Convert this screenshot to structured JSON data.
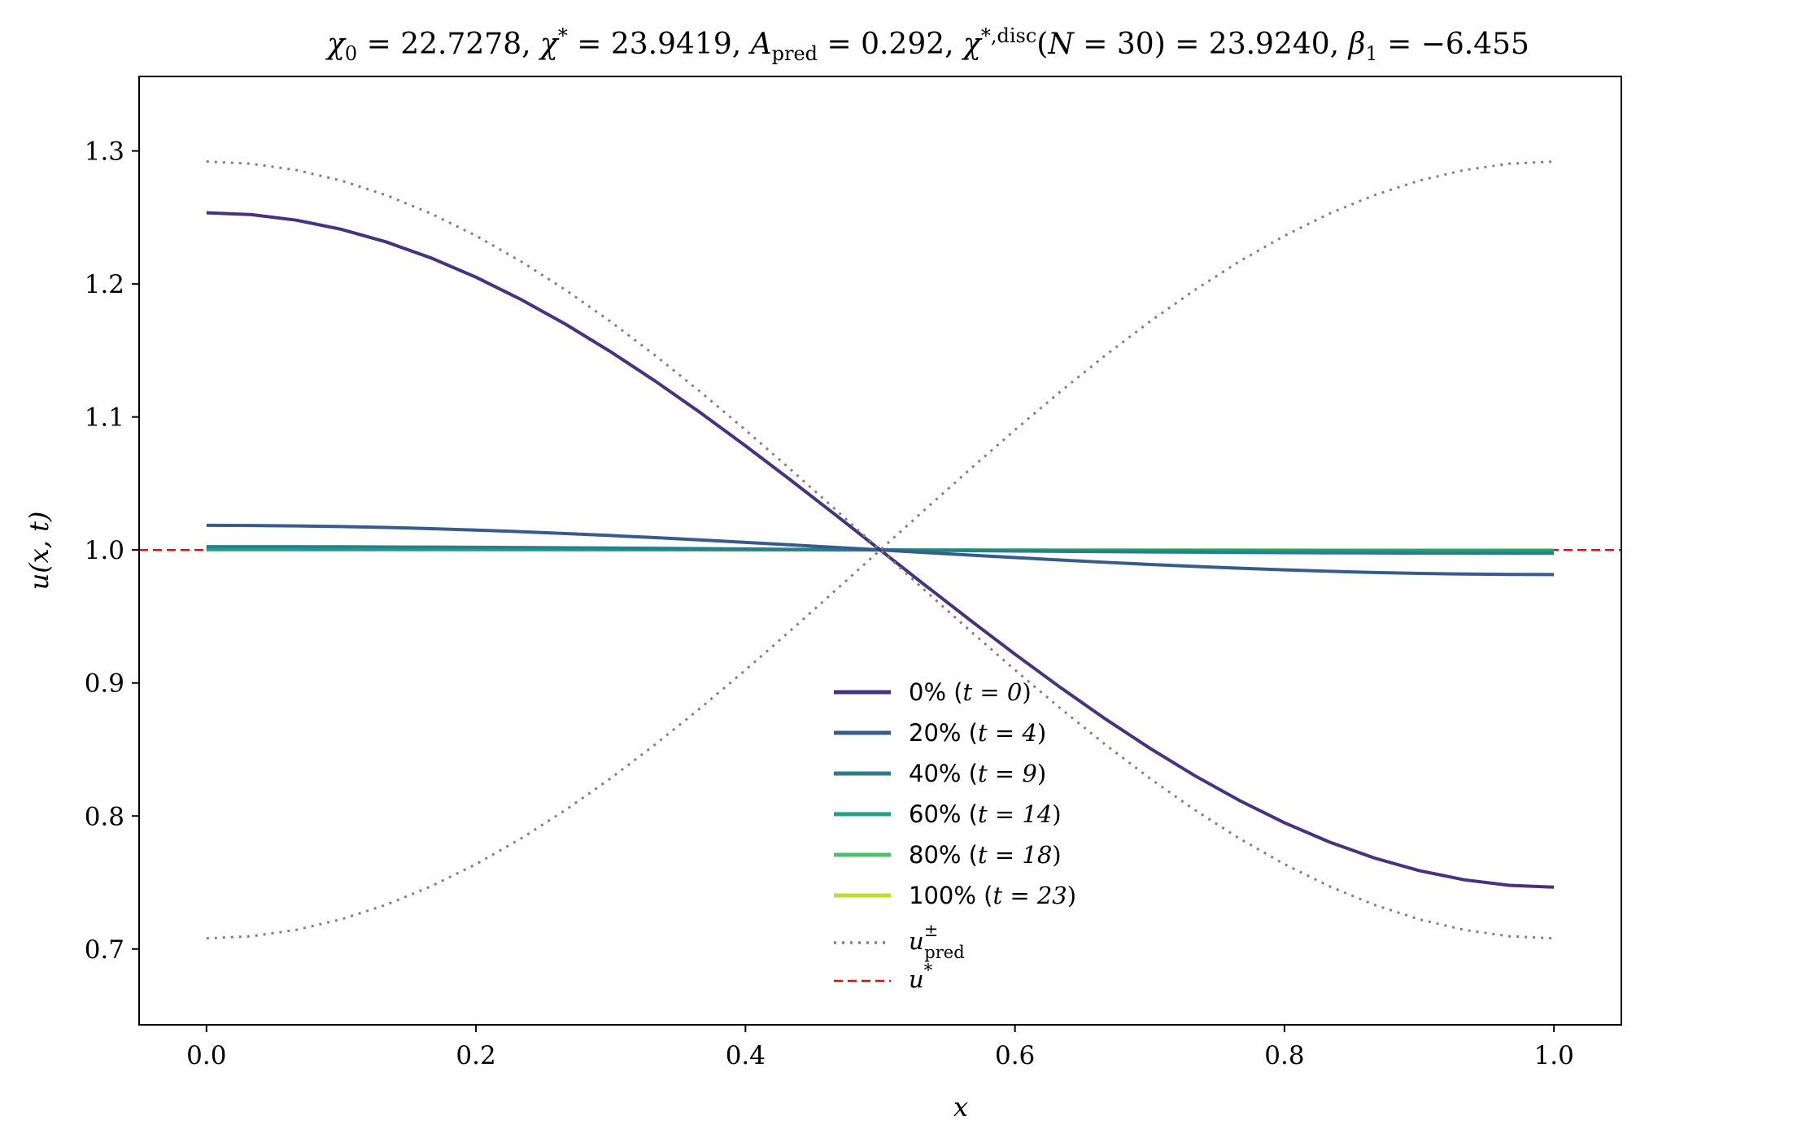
{
  "chart_data": {
    "type": "line",
    "title": "χ₀ = 22.7278,  χ* = 23.9419,  A_pred = 0.292,  χ*,disc(N = 30) = 23.9240,  β₁ = −6.455",
    "title_parts": {
      "chi0": "χ₀ = 22.7278,",
      "chistar": "χ* = 23.9419,",
      "apred": "A_pred = 0.292,",
      "chidisc": "χ*,disc(N = 30) = 23.9240,",
      "beta1": "β₁ = −6.455"
    },
    "xlabel": "x",
    "ylabel": "u(x, t)",
    "xlim": [
      -0.05,
      1.05
    ],
    "ylim": [
      0.643,
      1.356
    ],
    "xticks": [
      0.0,
      0.2,
      0.4,
      0.6,
      0.8,
      1.0
    ],
    "xtick_labels": [
      "0.0",
      "0.2",
      "0.4",
      "0.6",
      "0.8",
      "1.0"
    ],
    "yticks": [
      0.7,
      0.8,
      0.9,
      1.0,
      1.1,
      1.2,
      1.3
    ],
    "ytick_labels": [
      "0.7",
      "0.8",
      "0.9",
      "1.0",
      "1.1",
      "1.2",
      "1.3"
    ],
    "grid": false,
    "legend_position": "lower-center",
    "x_domain": [
      0.0,
      1.0
    ],
    "series": [
      {
        "name": "0% (t = 0)",
        "legend_pct": "0% (",
        "legend_t": "t = 0",
        "color": "#46327e",
        "style": "solid",
        "amplitude": 0.2535
      },
      {
        "name": "20% (t = 4)",
        "legend_pct": "20% (",
        "legend_t": "t = 4",
        "color": "#365c8d",
        "style": "solid",
        "amplitude": 0.0185
      },
      {
        "name": "40% (t = 9)",
        "legend_pct": "40% (",
        "legend_t": "t = 9",
        "color": "#277f8e",
        "style": "solid",
        "amplitude": 0.0025
      },
      {
        "name": "60% (t = 14)",
        "legend_pct": "60% (",
        "legend_t": "t = 14",
        "color": "#1fa187",
        "style": "solid",
        "amplitude": 0.0006
      },
      {
        "name": "80% (t = 18)",
        "legend_pct": "80% (",
        "legend_t": "t = 18",
        "color": "#4ac16d",
        "style": "solid",
        "amplitude": 0.0002
      },
      {
        "name": "100% (t = 23)",
        "legend_pct": "100% (",
        "legend_t": "t = 23",
        "color": "#bddf26",
        "style": "solid",
        "amplitude": 0.0001
      }
    ],
    "envelope": {
      "name": "u±pred",
      "legend_main": "u",
      "legend_sup": "±",
      "legend_sub": "pred",
      "color": "#808080",
      "style": "dotted",
      "amplitude": 0.292
    },
    "reference": {
      "name": "u*",
      "legend_main": "u",
      "legend_sup": "*",
      "value": 1.0,
      "color": "#ff0000",
      "style": "dashed"
    }
  }
}
